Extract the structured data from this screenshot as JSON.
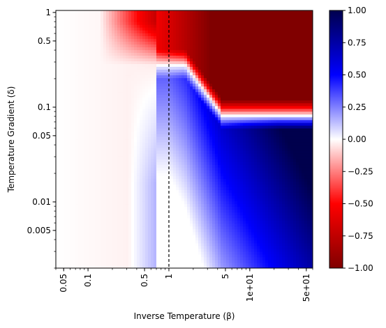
{
  "chart_data": {
    "type": "heatmap",
    "xlabel": "Inverse Temperature (β)",
    "ylabel": "Temperature Gradient (δ)",
    "x_scale": "log",
    "y_scale": "log",
    "xlim": [
      0.04,
      60
    ],
    "ylim": [
      0.002,
      1.05
    ],
    "x_ticks": [
      {
        "value": 0.05,
        "label": "0.05"
      },
      {
        "value": 0.1,
        "label": "0.1"
      },
      {
        "value": 0.5,
        "label": "0.5"
      },
      {
        "value": 1,
        "label": "1"
      },
      {
        "value": 5,
        "label": "5"
      },
      {
        "value": 10,
        "label": "1e+01"
      },
      {
        "value": 50,
        "label": "5e+01"
      }
    ],
    "y_ticks": [
      {
        "value": 1,
        "label": "1"
      },
      {
        "value": 0.5,
        "label": "0.5"
      },
      {
        "value": 0.1,
        "label": "0.1"
      },
      {
        "value": 0.05,
        "label": "0.05"
      },
      {
        "value": 0.01,
        "label": "0.01"
      },
      {
        "value": 0.005,
        "label": "0.005"
      }
    ],
    "reference_line": {
      "axis": "x",
      "value": 1,
      "style": "dashed",
      "color": "#000000"
    },
    "colorbar": {
      "colormap": "seismic_r",
      "range": [
        -1,
        1
      ],
      "ticks": [
        {
          "value": 1,
          "label": "1.00"
        },
        {
          "value": 0.75,
          "label": "0.75"
        },
        {
          "value": 0.5,
          "label": "0.50"
        },
        {
          "value": 0.25,
          "label": "0.25"
        },
        {
          "value": 0,
          "label": "0.00"
        },
        {
          "value": -0.25,
          "label": "−0.25"
        },
        {
          "value": -0.5,
          "label": "−0.50"
        },
        {
          "value": -0.75,
          "label": "−0.75"
        },
        {
          "value": -1,
          "label": "−1.00"
        }
      ],
      "color_stops": {
        "positive_max": "#00004d",
        "positive_mid": "#0000ff",
        "zero": "#ffffff",
        "negative_mid": "#ff0000",
        "negative_max": "#800000"
      }
    },
    "regions": [
      {
        "beta_range": [
          1,
          60
        ],
        "delta_range": [
          0.08,
          1.05
        ],
        "value_approx": -1.0
      },
      {
        "beta_range": [
          0.7,
          60
        ],
        "delta_range": [
          0.002,
          0.08
        ],
        "value_approx": 0.5
      },
      {
        "beta_range": [
          0.04,
          0.6
        ],
        "delta_range": [
          0.002,
          1.05
        ],
        "value_approx": 0.0
      }
    ]
  }
}
